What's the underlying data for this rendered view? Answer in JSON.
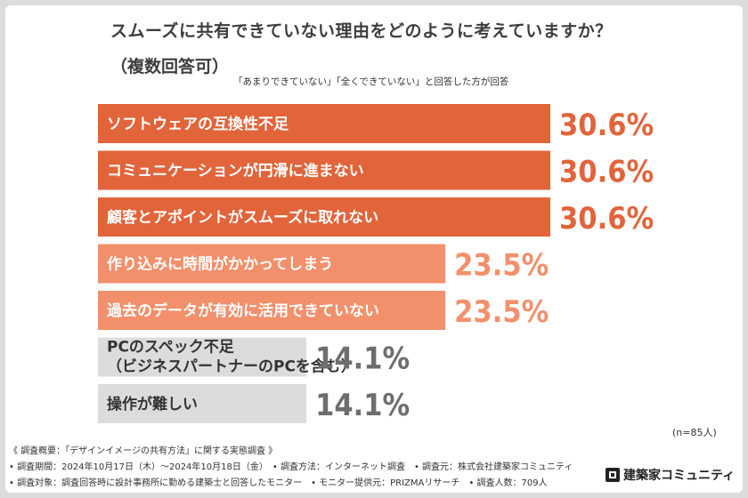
{
  "title_line1": "スムーズに共有できていない理由をどのように考えていますか？",
  "title_line2": "（複数回答可）",
  "note": "「あまりできていない」「全くできていない」と回答した方が回答",
  "n_label": "(n=85人)",
  "colors": {
    "dark": "#e2643a",
    "light": "#f2906b",
    "gray": "#dcdcdc"
  },
  "chart_data": {
    "type": "bar",
    "orientation": "horizontal",
    "categories": [
      "ソフトウェアの互換性不足",
      "コミュニケーションが円滑に進まない",
      "顧客とアポイントがスムーズに取れない",
      "作り込みに時間がかかってしまう",
      "過去のデータが有効に活用できていない",
      "PCのスペック不足\n（ビジネスパートナーのPCを含む）",
      "操作が難しい"
    ],
    "values": [
      30.6,
      30.6,
      30.6,
      23.5,
      23.5,
      14.1,
      14.1
    ],
    "value_labels": [
      "30.6%",
      "30.6%",
      "30.6%",
      "23.5%",
      "23.5%",
      "14.1%",
      "14.1%"
    ],
    "tiers": [
      "dark",
      "dark",
      "dark",
      "light",
      "light",
      "gray",
      "gray"
    ],
    "xlim": [
      0,
      30.6
    ]
  },
  "footer": {
    "line1": "《 調査概要：「デザインイメージの共有方法」に関する実態調査 》",
    "line2": "• 調査期間：2024年10月17日（木）〜2024年10月18日（金）　• 調査方法：インターネット調査　• 調査元：株式会社建築家コミュニティ",
    "line3": "• 調査対象：調査回答時に設計事務所に勤める建築士と回答したモニター　• モニター提供元：PRIZMAリサーチ　• 調査人数：709人"
  },
  "logo_text": "建築家コミュニティ"
}
